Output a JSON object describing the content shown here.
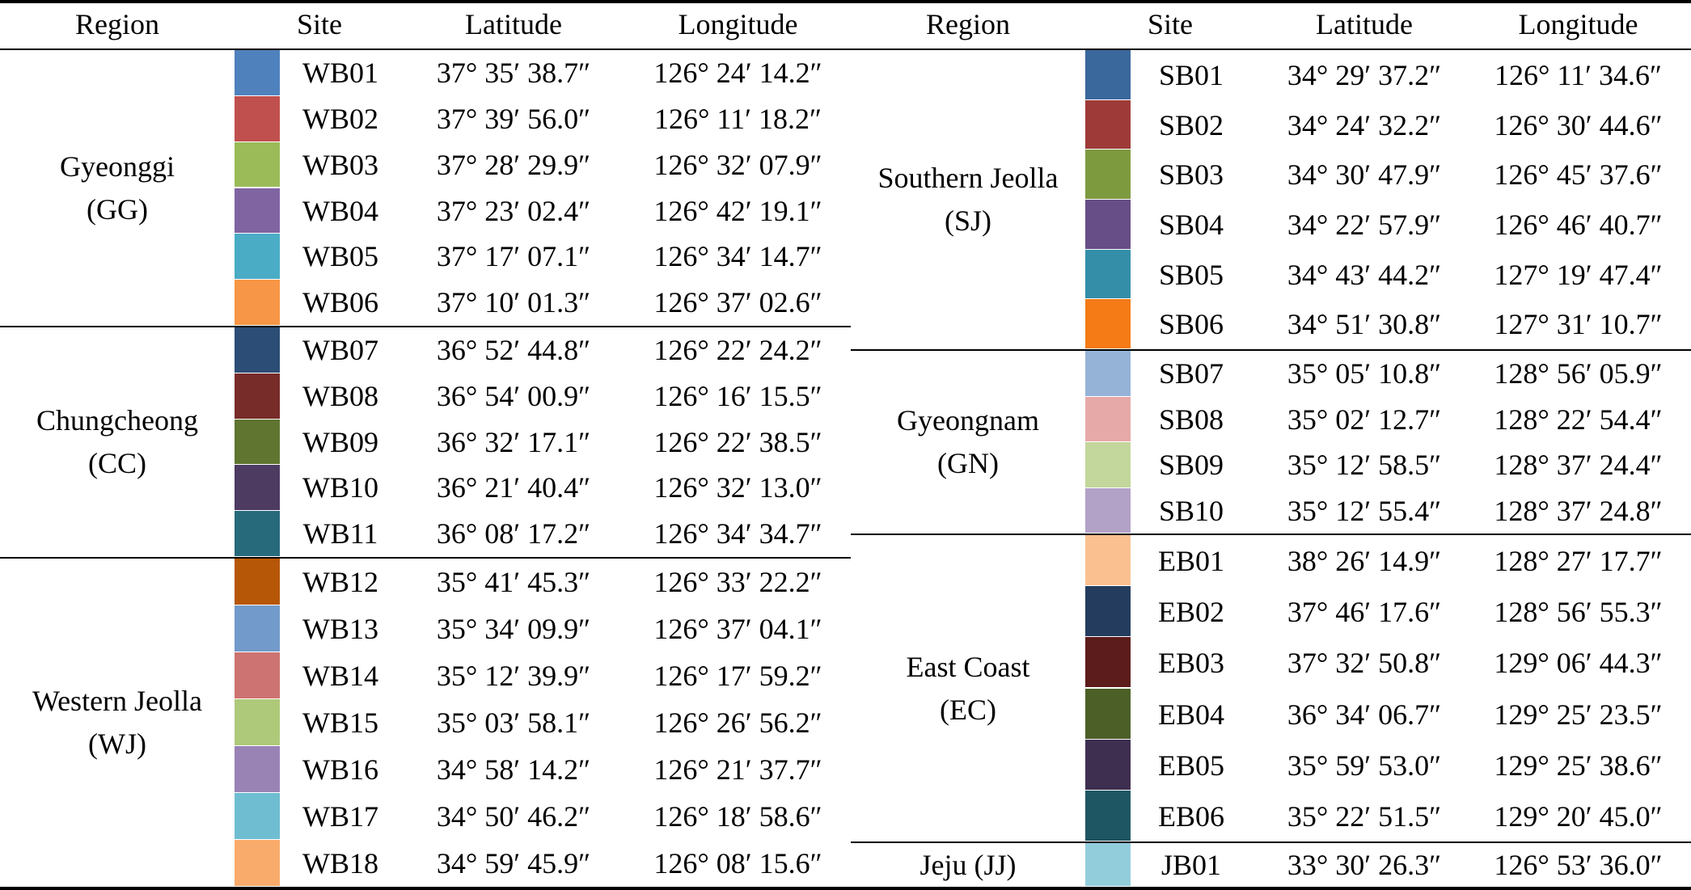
{
  "headers": {
    "region": "Region",
    "site": "Site",
    "latitude": "Latitude",
    "longitude": "Longitude"
  },
  "left": {
    "groups": [
      {
        "name": "Gyeonggi",
        "code": "(GG)",
        "sites": [
          {
            "id": "WB01",
            "lat": "37° 35′ 38.7″",
            "lon": "126° 24′ 14.2″",
            "color": "#4F81BD"
          },
          {
            "id": "WB02",
            "lat": "37° 39′ 56.0″",
            "lon": "126° 11′ 18.2″",
            "color": "#C0504D"
          },
          {
            "id": "WB03",
            "lat": "37° 28′ 29.9″",
            "lon": "126° 32′ 07.9″",
            "color": "#9BBB59"
          },
          {
            "id": "WB04",
            "lat": "37° 23′ 02.4″",
            "lon": "126° 42′ 19.1″",
            "color": "#8064A2"
          },
          {
            "id": "WB05",
            "lat": "37° 17′ 07.1″",
            "lon": "126° 34′ 14.7″",
            "color": "#4BACC6"
          },
          {
            "id": "WB06",
            "lat": "37° 10′ 01.3″",
            "lon": "126° 37′ 02.6″",
            "color": "#F79646"
          }
        ]
      },
      {
        "name": "Chungcheong",
        "code": "(CC)",
        "sites": [
          {
            "id": "WB07",
            "lat": "36° 52′ 44.8″",
            "lon": "126° 22′ 24.2″",
            "color": "#2C4D75"
          },
          {
            "id": "WB08",
            "lat": "36° 54′ 00.9″",
            "lon": "126° 16′ 15.5″",
            "color": "#772C2A"
          },
          {
            "id": "WB09",
            "lat": "36° 32′ 17.1″",
            "lon": "126° 22′ 38.5″",
            "color": "#5F7530"
          },
          {
            "id": "WB10",
            "lat": "36° 21′ 40.4″",
            "lon": "126° 32′ 13.0″",
            "color": "#4D3B62"
          },
          {
            "id": "WB11",
            "lat": "36° 08′ 17.2″",
            "lon": "126° 34′ 34.7″",
            "color": "#276A7C"
          }
        ]
      },
      {
        "name": "Western Jeolla",
        "code": "(WJ)",
        "sites": [
          {
            "id": "WB12",
            "lat": "35° 41′ 45.3″",
            "lon": "126° 33′ 22.2″",
            "color": "#B65708"
          },
          {
            "id": "WB13",
            "lat": "35° 34′ 09.9″",
            "lon": "126° 37′ 04.1″",
            "color": "#729ACA"
          },
          {
            "id": "WB14",
            "lat": "35° 12′ 39.9″",
            "lon": "126° 17′ 59.2″",
            "color": "#CD7371"
          },
          {
            "id": "WB15",
            "lat": "35° 03′ 58.1″",
            "lon": "126° 26′ 56.2″",
            "color": "#AFC97A"
          },
          {
            "id": "WB16",
            "lat": "34° 58′ 14.2″",
            "lon": "126° 21′ 37.7″",
            "color": "#9983B5"
          },
          {
            "id": "WB17",
            "lat": "34° 50′ 46.2″",
            "lon": "126° 18′ 58.6″",
            "color": "#6FBDD1"
          },
          {
            "id": "WB18",
            "lat": "34° 59′ 45.9″",
            "lon": "126° 08′ 15.6″",
            "color": "#F9AB6B"
          }
        ]
      }
    ]
  },
  "right": {
    "groups": [
      {
        "name": "Southern Jeolla",
        "code": "(SJ)",
        "sites": [
          {
            "id": "SB01",
            "lat": "34° 29′ 37.2″",
            "lon": "126° 11′ 34.6″",
            "color": "#3A679C"
          },
          {
            "id": "SB02",
            "lat": "34° 24′ 32.2″",
            "lon": "126° 30′ 44.6″",
            "color": "#9E3B38"
          },
          {
            "id": "SB03",
            "lat": "34° 30′ 47.9″",
            "lon": "126° 45′ 37.6″",
            "color": "#7E9A3F"
          },
          {
            "id": "SB04",
            "lat": "34° 22′ 57.9″",
            "lon": "126° 46′ 40.7″",
            "color": "#674E86"
          },
          {
            "id": "SB05",
            "lat": "34° 43′ 44.2″",
            "lon": "127° 19′ 47.4″",
            "color": "#348EA8"
          },
          {
            "id": "SB06",
            "lat": "34° 51′ 30.8″",
            "lon": "127° 31′ 10.7″",
            "color": "#F47B15"
          }
        ]
      },
      {
        "name": "Gyeongnam",
        "code": "(GN)",
        "sites": [
          {
            "id": "SB07",
            "lat": "35° 05′ 10.8″",
            "lon": "128° 56′ 05.9″",
            "color": "#95B3D7"
          },
          {
            "id": "SB08",
            "lat": "35° 02′ 12.7″",
            "lon": "128° 22′ 54.4″",
            "color": "#E6A9A8"
          },
          {
            "id": "SB09",
            "lat": "35° 12′ 58.5″",
            "lon": "128° 37′ 24.4″",
            "color": "#C3D69B"
          },
          {
            "id": "SB10",
            "lat": "35° 12′ 55.4″",
            "lon": "128° 37′ 24.8″",
            "color": "#B3A2C7"
          }
        ]
      },
      {
        "name": "East Coast",
        "code": "(EC)",
        "sites": [
          {
            "id": "EB01",
            "lat": "38° 26′ 14.9″",
            "lon": "128° 27′ 17.7″",
            "color": "#FAC090"
          },
          {
            "id": "EB02",
            "lat": "37° 46′ 17.6″",
            "lon": "128° 56′ 55.3″",
            "color": "#243C5E"
          },
          {
            "id": "EB03",
            "lat": "37° 32′ 50.8″",
            "lon": "129° 06′ 44.3″",
            "color": "#5B1C1B"
          },
          {
            "id": "EB04",
            "lat": "36° 34′ 06.7″",
            "lon": "129° 25′ 23.5″",
            "color": "#4C5F27"
          },
          {
            "id": "EB05",
            "lat": "35° 59′ 53.0″",
            "lon": "129° 25′ 38.6″",
            "color": "#3E2F50"
          },
          {
            "id": "EB06",
            "lat": "35° 22′ 51.5″",
            "lon": "129° 20′ 45.0″",
            "color": "#1F5664"
          }
        ]
      },
      {
        "name": "Jeju (JJ)",
        "code": "",
        "sites": [
          {
            "id": "JB01",
            "lat": "33° 30′ 26.3″",
            "lon": "126° 53′ 36.0″",
            "color": "#92CDDC"
          }
        ]
      }
    ]
  }
}
